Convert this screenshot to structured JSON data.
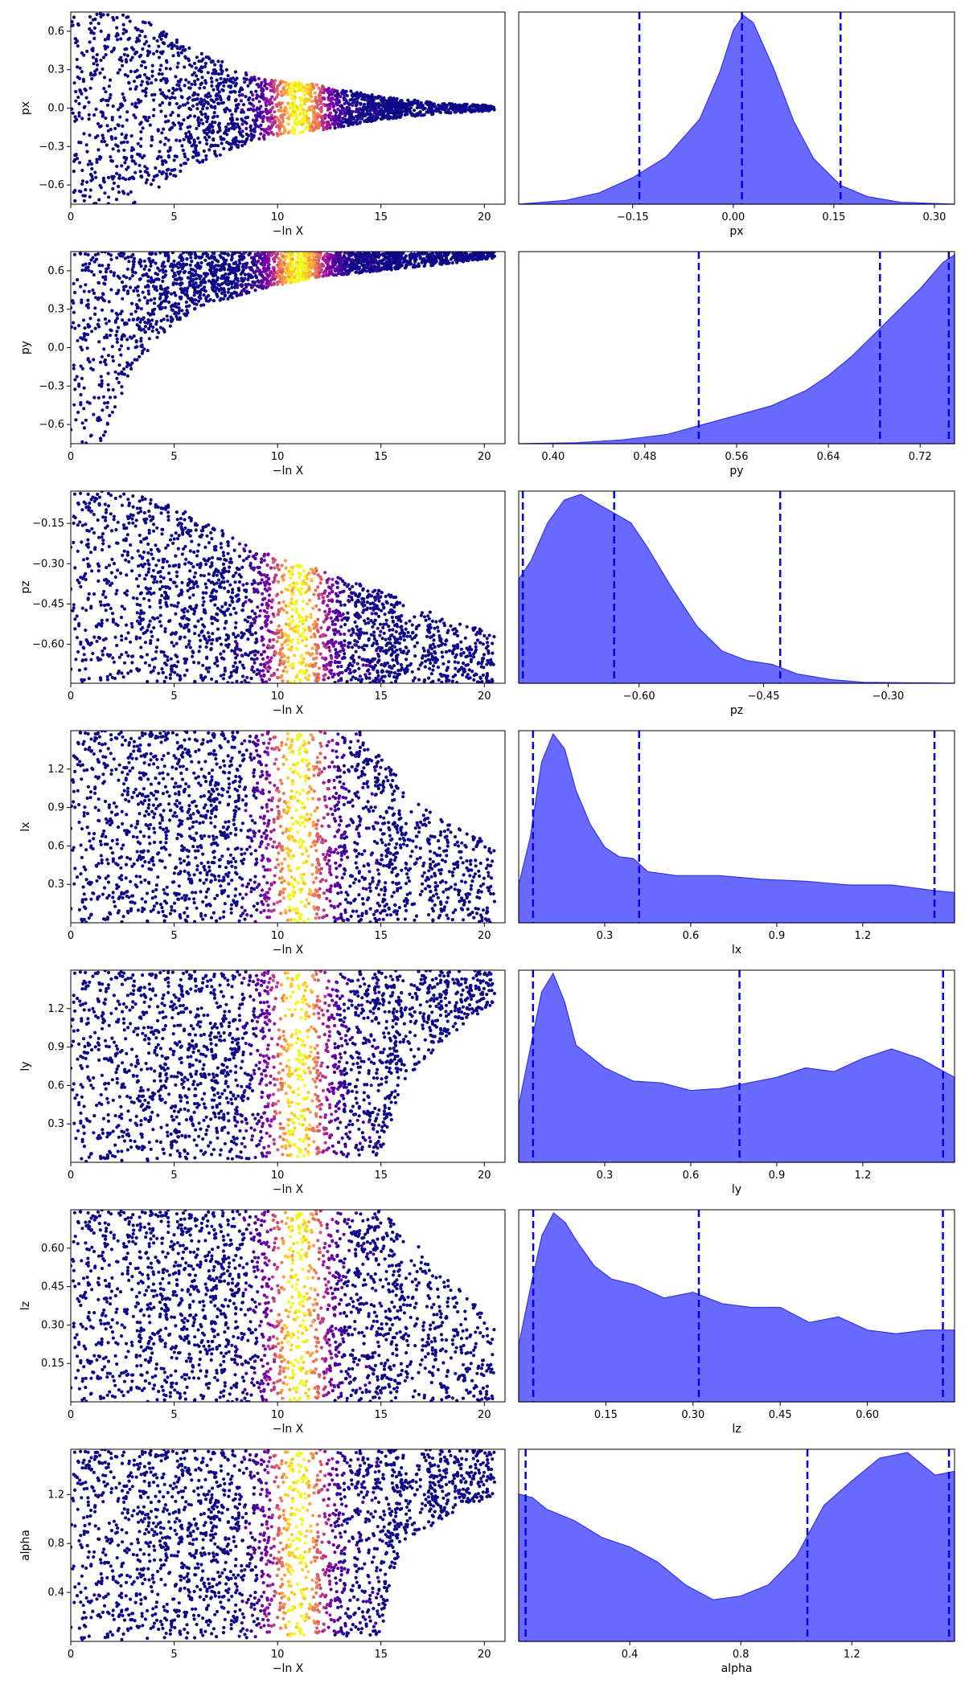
{
  "figure": {
    "trace_xlabel": "−ln X",
    "trace_xlim": [
      0,
      21
    ],
    "trace_xticks": [
      0,
      5,
      10,
      15,
      20
    ],
    "trace_xtick_labels": [
      "0",
      "5",
      "10",
      "15",
      "20"
    ],
    "colormap": "plasma",
    "trace_point_color_low": "#0d0887",
    "trace_point_color_high": "#f0f921",
    "posterior_fill_color": "#6262ff",
    "posterior_line_color": "#3333ee",
    "quantile_line_color": "#0000ee"
  },
  "chart_data": [
    {
      "type": "scatter",
      "panel": "trace",
      "param": "px",
      "xlabel": "−ln X",
      "ylabel": "px",
      "xlim": [
        0,
        21
      ],
      "ylim": [
        -0.75,
        0.75
      ],
      "yticks": [
        -0.6,
        -0.3,
        0.0,
        0.3,
        0.6
      ],
      "ytick_labels": [
        "−0.6",
        "−0.3",
        "0.0",
        "0.3",
        "0.6"
      ],
      "envelope": [
        [
          0,
          0.75
        ],
        [
          3,
          0.75
        ],
        [
          6,
          0.45
        ],
        [
          9,
          0.25
        ],
        [
          12,
          0.18
        ],
        [
          15,
          0.09
        ],
        [
          18,
          0.04
        ],
        [
          20.5,
          0.02
        ]
      ],
      "envelope_lower": [
        [
          0,
          -0.75
        ],
        [
          3,
          -0.75
        ],
        [
          6,
          -0.45
        ],
        [
          9,
          -0.25
        ],
        [
          12,
          -0.18
        ],
        [
          15,
          -0.09
        ],
        [
          18,
          -0.04
        ],
        [
          20.5,
          -0.02
        ]
      ],
      "center": 0.01,
      "hot_band": [
        9,
        13.5
      ],
      "peak_x": 11.0
    },
    {
      "type": "area",
      "panel": "posterior",
      "param": "px",
      "xlabel": "px",
      "xlim": [
        -0.32,
        0.33
      ],
      "xticks": [
        -0.15,
        0.0,
        0.15,
        0.3
      ],
      "xtick_labels": [
        "−0.15",
        "0.00",
        "0.15",
        "0.30"
      ],
      "quantiles": [
        -0.14,
        0.013,
        0.16
      ],
      "density": [
        [
          -0.32,
          0.0
        ],
        [
          -0.25,
          0.02
        ],
        [
          -0.2,
          0.06
        ],
        [
          -0.15,
          0.14
        ],
        [
          -0.1,
          0.25
        ],
        [
          -0.05,
          0.45
        ],
        [
          -0.02,
          0.7
        ],
        [
          0.0,
          0.92
        ],
        [
          0.015,
          1.0
        ],
        [
          0.03,
          0.96
        ],
        [
          0.06,
          0.72
        ],
        [
          0.09,
          0.44
        ],
        [
          0.12,
          0.24
        ],
        [
          0.16,
          0.1
        ],
        [
          0.2,
          0.04
        ],
        [
          0.25,
          0.01
        ],
        [
          0.33,
          0.0
        ]
      ]
    },
    {
      "type": "scatter",
      "panel": "trace",
      "param": "py",
      "xlabel": "−ln X",
      "ylabel": "py",
      "xlim": [
        0,
        21
      ],
      "ylim": [
        -0.75,
        0.75
      ],
      "yticks": [
        -0.6,
        -0.3,
        0.0,
        0.3,
        0.6
      ],
      "ytick_labels": [
        "−0.6",
        "−0.3",
        "0.0",
        "0.3",
        "0.6"
      ],
      "envelope": [
        [
          0,
          0.75
        ],
        [
          20.5,
          0.75
        ]
      ],
      "envelope_lower": [
        [
          0,
          -0.75
        ],
        [
          1.5,
          -0.75
        ],
        [
          2.5,
          -0.35
        ],
        [
          4,
          0.05
        ],
        [
          6,
          0.3
        ],
        [
          9,
          0.45
        ],
        [
          12,
          0.55
        ],
        [
          15,
          0.6
        ],
        [
          18,
          0.65
        ],
        [
          20.5,
          0.7
        ]
      ],
      "center": 0.6,
      "hot_band": [
        9,
        13.5
      ],
      "peak_x": 11.0
    },
    {
      "type": "area",
      "panel": "posterior",
      "param": "py",
      "xlabel": "py",
      "xlim": [
        0.37,
        0.75
      ],
      "xticks": [
        0.4,
        0.48,
        0.56,
        0.64,
        0.72
      ],
      "xtick_labels": [
        "0.40",
        "0.48",
        "0.56",
        "0.64",
        "0.72"
      ],
      "quantiles": [
        0.527,
        0.685,
        0.745
      ],
      "density": [
        [
          0.37,
          0.0
        ],
        [
          0.42,
          0.005
        ],
        [
          0.46,
          0.02
        ],
        [
          0.5,
          0.05
        ],
        [
          0.53,
          0.1
        ],
        [
          0.56,
          0.15
        ],
        [
          0.59,
          0.2
        ],
        [
          0.62,
          0.28
        ],
        [
          0.64,
          0.36
        ],
        [
          0.66,
          0.46
        ],
        [
          0.68,
          0.58
        ],
        [
          0.7,
          0.7
        ],
        [
          0.72,
          0.82
        ],
        [
          0.74,
          0.96
        ],
        [
          0.75,
          1.0
        ]
      ]
    },
    {
      "type": "scatter",
      "panel": "trace",
      "param": "pz",
      "xlabel": "−ln X",
      "ylabel": "pz",
      "xlim": [
        0,
        21
      ],
      "ylim": [
        -0.745,
        -0.03
      ],
      "yticks": [
        -0.6,
        -0.45,
        -0.3,
        -0.15
      ],
      "ytick_labels": [
        "−0.60",
        "−0.45",
        "−0.30",
        "−0.15"
      ],
      "envelope": [
        [
          0,
          -0.03
        ],
        [
          3,
          -0.03
        ],
        [
          6,
          -0.12
        ],
        [
          9,
          -0.25
        ],
        [
          12,
          -0.32
        ],
        [
          15,
          -0.4
        ],
        [
          18,
          -0.5
        ],
        [
          20.5,
          -0.56
        ]
      ],
      "envelope_lower": [
        [
          0,
          -0.745
        ],
        [
          20.5,
          -0.745
        ]
      ],
      "center": -0.6,
      "hot_band": [
        9,
        13.5
      ],
      "peak_x": 11.0
    },
    {
      "type": "area",
      "panel": "posterior",
      "param": "pz",
      "xlabel": "pz",
      "xlim": [
        -0.745,
        -0.22
      ],
      "xticks": [
        -0.6,
        -0.45,
        -0.3
      ],
      "xtick_labels": [
        "−0.60",
        "−0.45",
        "−0.30"
      ],
      "quantiles": [
        -0.74,
        -0.63,
        -0.43
      ],
      "density": [
        [
          -0.745,
          0.55
        ],
        [
          -0.73,
          0.65
        ],
        [
          -0.71,
          0.85
        ],
        [
          -0.69,
          0.97
        ],
        [
          -0.67,
          1.0
        ],
        [
          -0.65,
          0.95
        ],
        [
          -0.63,
          0.9
        ],
        [
          -0.61,
          0.85
        ],
        [
          -0.59,
          0.72
        ],
        [
          -0.56,
          0.5
        ],
        [
          -0.53,
          0.3
        ],
        [
          -0.5,
          0.17
        ],
        [
          -0.47,
          0.12
        ],
        [
          -0.44,
          0.1
        ],
        [
          -0.41,
          0.05
        ],
        [
          -0.37,
          0.02
        ],
        [
          -0.33,
          0.005
        ],
        [
          -0.22,
          0.0
        ]
      ]
    },
    {
      "type": "scatter",
      "panel": "trace",
      "param": "lx",
      "xlabel": "−ln X",
      "ylabel": "lx",
      "xlim": [
        0,
        21
      ],
      "ylim": [
        0.0,
        1.5
      ],
      "yticks": [
        0.3,
        0.6,
        0.9,
        1.2
      ],
      "ytick_labels": [
        "0.3",
        "0.6",
        "0.9",
        "1.2"
      ],
      "envelope": [
        [
          0,
          1.5
        ],
        [
          14,
          1.5
        ],
        [
          17,
          0.9
        ],
        [
          20.5,
          0.6
        ]
      ],
      "envelope_lower": [
        [
          0,
          0.0
        ],
        [
          20.5,
          0.0
        ]
      ],
      "center": 0.3,
      "hot_band": [
        9,
        13.5
      ],
      "peak_x": 11.0
    },
    {
      "type": "area",
      "panel": "posterior",
      "param": "lx",
      "xlabel": "lx",
      "xlim": [
        0.0,
        1.52
      ],
      "xticks": [
        0.3,
        0.6,
        0.9,
        1.2
      ],
      "xtick_labels": [
        "0.3",
        "0.6",
        "0.9",
        "1.2"
      ],
      "quantiles": [
        0.05,
        0.42,
        1.45
      ],
      "density": [
        [
          0.0,
          0.2
        ],
        [
          0.04,
          0.45
        ],
        [
          0.08,
          0.85
        ],
        [
          0.12,
          1.0
        ],
        [
          0.16,
          0.92
        ],
        [
          0.2,
          0.7
        ],
        [
          0.25,
          0.52
        ],
        [
          0.3,
          0.4
        ],
        [
          0.35,
          0.35
        ],
        [
          0.4,
          0.34
        ],
        [
          0.45,
          0.27
        ],
        [
          0.55,
          0.25
        ],
        [
          0.7,
          0.25
        ],
        [
          0.85,
          0.23
        ],
        [
          1.0,
          0.22
        ],
        [
          1.15,
          0.2
        ],
        [
          1.3,
          0.2
        ],
        [
          1.45,
          0.17
        ],
        [
          1.52,
          0.16
        ]
      ]
    },
    {
      "type": "scatter",
      "panel": "trace",
      "param": "ly",
      "xlabel": "−ln X",
      "ylabel": "ly",
      "xlim": [
        0,
        21
      ],
      "ylim": [
        0.0,
        1.5
      ],
      "yticks": [
        0.3,
        0.6,
        0.9,
        1.2
      ],
      "ytick_labels": [
        "0.3",
        "0.6",
        "0.9",
        "1.2"
      ],
      "envelope": [
        [
          0,
          1.5
        ],
        [
          20.5,
          1.5
        ]
      ],
      "envelope_lower": [
        [
          0,
          0.0
        ],
        [
          15,
          0.05
        ],
        [
          16,
          0.6
        ],
        [
          18,
          0.95
        ],
        [
          20.5,
          1.25
        ]
      ],
      "center": 1.2,
      "hot_band": [
        9,
        13.5
      ],
      "peak_x": 11.0
    },
    {
      "type": "area",
      "panel": "posterior",
      "param": "ly",
      "xlabel": "ly",
      "xlim": [
        0.0,
        1.52
      ],
      "xticks": [
        0.3,
        0.6,
        0.9,
        1.2
      ],
      "xtick_labels": [
        "0.3",
        "0.6",
        "0.9",
        "1.2"
      ],
      "quantiles": [
        0.05,
        0.77,
        1.48
      ],
      "density": [
        [
          0.0,
          0.3
        ],
        [
          0.04,
          0.6
        ],
        [
          0.08,
          0.9
        ],
        [
          0.12,
          1.0
        ],
        [
          0.16,
          0.85
        ],
        [
          0.2,
          0.62
        ],
        [
          0.3,
          0.5
        ],
        [
          0.4,
          0.43
        ],
        [
          0.5,
          0.42
        ],
        [
          0.6,
          0.38
        ],
        [
          0.7,
          0.39
        ],
        [
          0.8,
          0.42
        ],
        [
          0.9,
          0.45
        ],
        [
          1.0,
          0.5
        ],
        [
          1.1,
          0.48
        ],
        [
          1.2,
          0.55
        ],
        [
          1.3,
          0.6
        ],
        [
          1.4,
          0.55
        ],
        [
          1.52,
          0.45
        ]
      ]
    },
    {
      "type": "scatter",
      "panel": "trace",
      "param": "lz",
      "xlabel": "−ln X",
      "ylabel": "lz",
      "xlim": [
        0,
        21
      ],
      "ylim": [
        0.0,
        0.75
      ],
      "yticks": [
        0.15,
        0.3,
        0.45,
        0.6
      ],
      "ytick_labels": [
        "0.15",
        "0.30",
        "0.45",
        "0.60"
      ],
      "envelope": [
        [
          0,
          0.75
        ],
        [
          15,
          0.75
        ],
        [
          17,
          0.6
        ],
        [
          20.5,
          0.3
        ]
      ],
      "envelope_lower": [
        [
          0,
          0.0
        ],
        [
          20.5,
          0.0
        ]
      ],
      "center": 0.2,
      "hot_band": [
        9,
        13.5
      ],
      "peak_x": 11.0
    },
    {
      "type": "area",
      "panel": "posterior",
      "param": "lz",
      "xlabel": "lz",
      "xlim": [
        0.0,
        0.75
      ],
      "xticks": [
        0.15,
        0.3,
        0.45,
        0.6
      ],
      "xtick_labels": [
        "0.15",
        "0.30",
        "0.45",
        "0.60"
      ],
      "quantiles": [
        0.025,
        0.31,
        0.73
      ],
      "density": [
        [
          0.0,
          0.3
        ],
        [
          0.02,
          0.6
        ],
        [
          0.04,
          0.88
        ],
        [
          0.06,
          1.0
        ],
        [
          0.08,
          0.95
        ],
        [
          0.1,
          0.85
        ],
        [
          0.13,
          0.72
        ],
        [
          0.16,
          0.65
        ],
        [
          0.2,
          0.62
        ],
        [
          0.25,
          0.55
        ],
        [
          0.3,
          0.58
        ],
        [
          0.35,
          0.52
        ],
        [
          0.4,
          0.5
        ],
        [
          0.45,
          0.5
        ],
        [
          0.5,
          0.42
        ],
        [
          0.55,
          0.45
        ],
        [
          0.6,
          0.38
        ],
        [
          0.65,
          0.36
        ],
        [
          0.7,
          0.38
        ],
        [
          0.75,
          0.38
        ]
      ]
    },
    {
      "type": "scatter",
      "panel": "trace",
      "param": "alpha",
      "xlabel": "−ln X",
      "ylabel": "alpha",
      "xlim": [
        0,
        21
      ],
      "ylim": [
        0.0,
        1.57
      ],
      "yticks": [
        0.4,
        0.8,
        1.2
      ],
      "ytick_labels": [
        "0.4",
        "0.8",
        "1.2"
      ],
      "envelope": [
        [
          0,
          1.57
        ],
        [
          20.5,
          1.57
        ]
      ],
      "envelope_lower": [
        [
          0,
          0.0
        ],
        [
          15,
          0.05
        ],
        [
          16,
          0.8
        ],
        [
          18,
          1.0
        ],
        [
          20.5,
          1.2
        ]
      ],
      "center": 1.2,
      "hot_band": [
        9,
        13.5
      ],
      "peak_x": 11.0
    },
    {
      "type": "area",
      "panel": "posterior",
      "param": "alpha",
      "xlabel": "alpha",
      "xlim": [
        0.0,
        1.57
      ],
      "xticks": [
        0.4,
        0.8,
        1.2
      ],
      "xtick_labels": [
        "0.4",
        "0.8",
        "1.2"
      ],
      "quantiles": [
        0.025,
        1.04,
        1.55
      ],
      "density": [
        [
          0.0,
          0.78
        ],
        [
          0.05,
          0.76
        ],
        [
          0.1,
          0.7
        ],
        [
          0.2,
          0.64
        ],
        [
          0.3,
          0.55
        ],
        [
          0.4,
          0.5
        ],
        [
          0.5,
          0.42
        ],
        [
          0.6,
          0.3
        ],
        [
          0.7,
          0.22
        ],
        [
          0.8,
          0.24
        ],
        [
          0.9,
          0.3
        ],
        [
          1.0,
          0.45
        ],
        [
          1.1,
          0.72
        ],
        [
          1.2,
          0.85
        ],
        [
          1.3,
          0.97
        ],
        [
          1.4,
          1.0
        ],
        [
          1.5,
          0.88
        ],
        [
          1.57,
          0.9
        ]
      ]
    }
  ]
}
